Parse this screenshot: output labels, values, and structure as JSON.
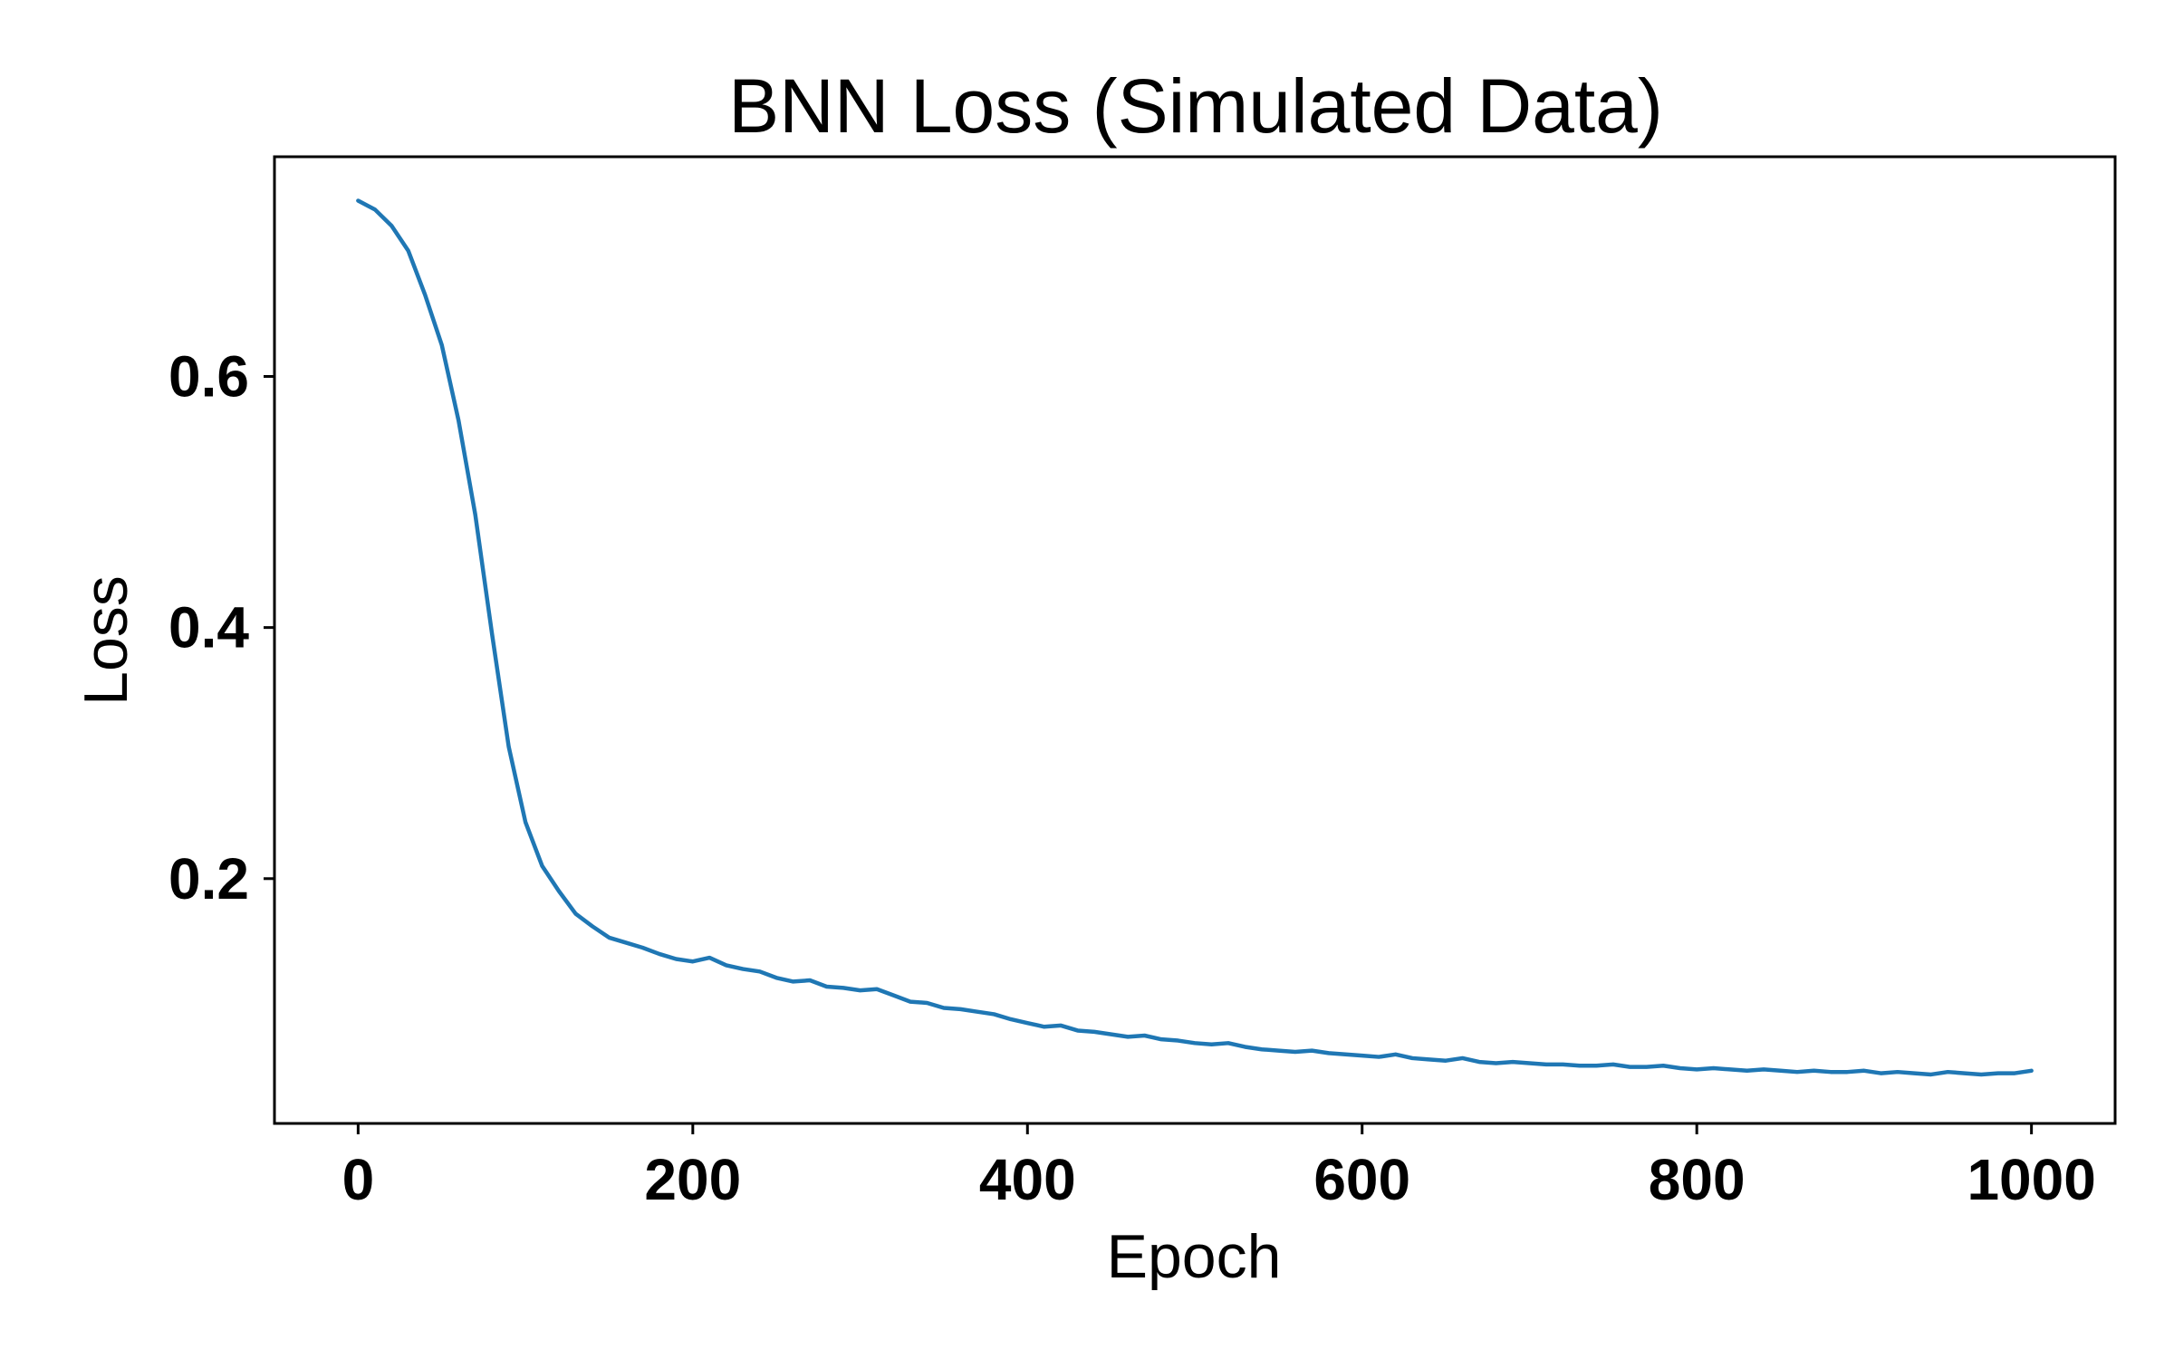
{
  "chart_data": {
    "type": "line",
    "title": "BNN Loss (Simulated Data)",
    "xlabel": "Epoch",
    "ylabel": "Loss",
    "xlim": [
      -50,
      1050
    ],
    "ylim": [
      0.005,
      0.775
    ],
    "xticks": [
      0,
      200,
      400,
      600,
      800,
      1000
    ],
    "xtick_labels": [
      "0",
      "200",
      "400",
      "600",
      "800",
      "1000"
    ],
    "yticks": [
      0.2,
      0.4,
      0.6
    ],
    "ytick_labels": [
      "0.2",
      "0.4",
      "0.6"
    ],
    "grid": false,
    "series": [
      {
        "color": "#1f77b4",
        "x": [
          0,
          10,
          20,
          30,
          40,
          50,
          60,
          70,
          80,
          90,
          100,
          110,
          120,
          130,
          140,
          150,
          160,
          170,
          180,
          190,
          200,
          210,
          220,
          230,
          240,
          250,
          260,
          270,
          280,
          290,
          300,
          310,
          320,
          330,
          340,
          350,
          360,
          370,
          380,
          390,
          400,
          410,
          420,
          430,
          440,
          450,
          460,
          470,
          480,
          490,
          500,
          510,
          520,
          530,
          540,
          550,
          560,
          570,
          580,
          590,
          600,
          610,
          620,
          630,
          640,
          650,
          660,
          670,
          680,
          690,
          700,
          710,
          720,
          730,
          740,
          750,
          760,
          770,
          780,
          790,
          800,
          810,
          820,
          830,
          840,
          850,
          860,
          870,
          880,
          890,
          900,
          910,
          920,
          930,
          940,
          950,
          960,
          970,
          980,
          990,
          1000
        ],
        "y": [
          0.74,
          0.733,
          0.72,
          0.7,
          0.665,
          0.625,
          0.565,
          0.49,
          0.395,
          0.305,
          0.245,
          0.21,
          0.19,
          0.172,
          0.162,
          0.153,
          0.149,
          0.145,
          0.14,
          0.136,
          0.134,
          0.137,
          0.131,
          0.128,
          0.126,
          0.121,
          0.118,
          0.119,
          0.114,
          0.113,
          0.111,
          0.112,
          0.107,
          0.102,
          0.101,
          0.097,
          0.096,
          0.094,
          0.092,
          0.088,
          0.085,
          0.082,
          0.083,
          0.079,
          0.078,
          0.076,
          0.074,
          0.075,
          0.072,
          0.071,
          0.069,
          0.068,
          0.069,
          0.066,
          0.064,
          0.063,
          0.062,
          0.063,
          0.061,
          0.06,
          0.059,
          0.058,
          0.06,
          0.057,
          0.056,
          0.055,
          0.057,
          0.054,
          0.053,
          0.054,
          0.053,
          0.052,
          0.052,
          0.051,
          0.051,
          0.052,
          0.05,
          0.05,
          0.051,
          0.049,
          0.048,
          0.049,
          0.048,
          0.047,
          0.048,
          0.047,
          0.046,
          0.047,
          0.046,
          0.046,
          0.047,
          0.045,
          0.046,
          0.045,
          0.044,
          0.046,
          0.045,
          0.044,
          0.045,
          0.045,
          0.047
        ]
      }
    ]
  }
}
